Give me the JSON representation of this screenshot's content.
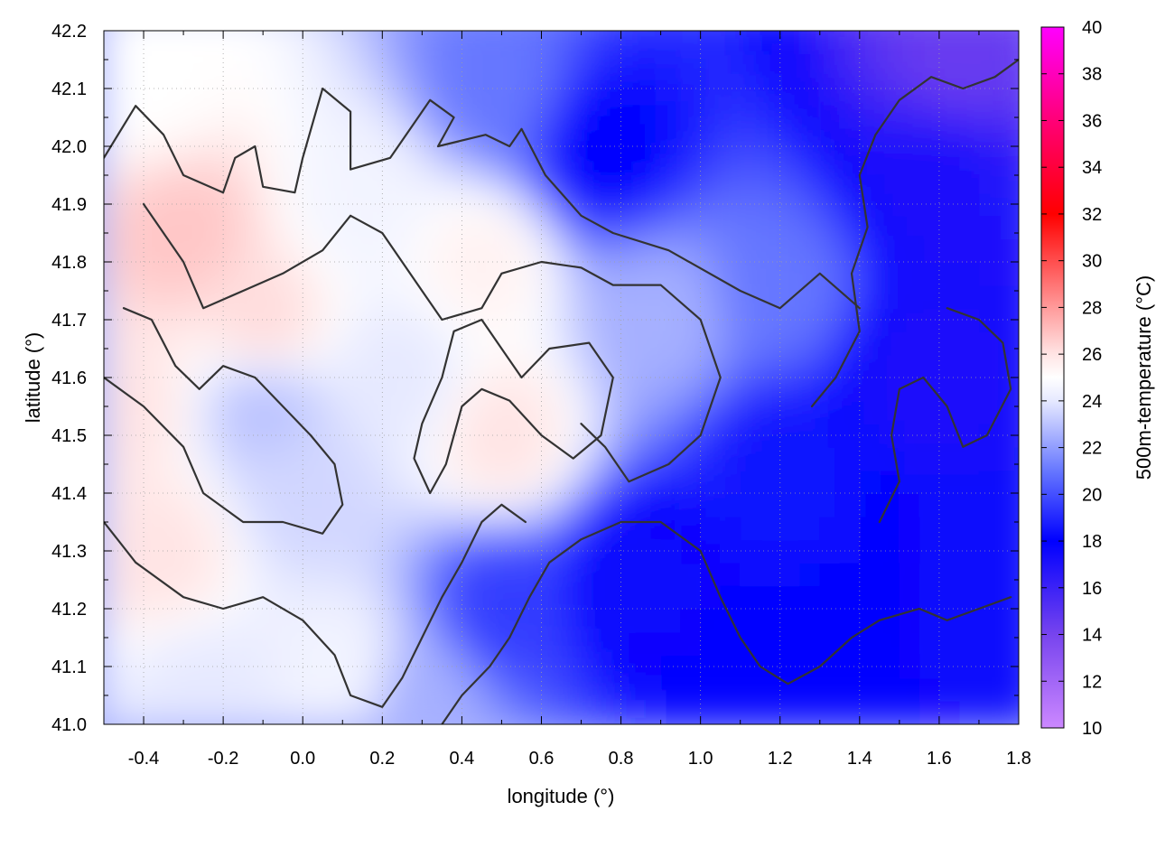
{
  "chart_data": {
    "type": "heatmap",
    "title": "",
    "xlabel": "longitude (°)",
    "ylabel": "latitude (°)",
    "colorbar_label": "500m-temperature (°C)",
    "xlim": [
      -0.5,
      1.8
    ],
    "ylim": [
      41.0,
      42.2
    ],
    "xticks": [
      -0.4,
      -0.2,
      0.0,
      0.2,
      0.4,
      0.6,
      0.8,
      1.0,
      1.2,
      1.4,
      1.6,
      1.8
    ],
    "xtick_labels": [
      "-0.4",
      "-0.2",
      "0.0",
      "0.2",
      "0.4",
      "0.6",
      "0.8",
      "1.0",
      "1.2",
      "1.4",
      "1.6",
      "1.8"
    ],
    "yticks": [
      41.0,
      41.1,
      41.2,
      41.3,
      41.4,
      41.5,
      41.6,
      41.7,
      41.8,
      41.9,
      42.0,
      42.1,
      42.2
    ],
    "ytick_labels": [
      "41.0",
      "41.1",
      "41.2",
      "41.3",
      "41.4",
      "41.5",
      "41.6",
      "41.7",
      "41.8",
      "41.9",
      "42.0",
      "42.1",
      "42.2"
    ],
    "grid": true,
    "colorbar": {
      "range": [
        10,
        40
      ],
      "ticks": [
        10,
        12,
        14,
        16,
        18,
        20,
        22,
        24,
        26,
        28,
        30,
        32,
        34,
        36,
        38,
        40
      ],
      "tick_labels": [
        "10",
        "12",
        "14",
        "16",
        "18",
        "20",
        "22",
        "24",
        "26",
        "28",
        "30",
        "32",
        "34",
        "36",
        "38",
        "40"
      ],
      "stops": [
        {
          "value": 10,
          "color": "#cc88ff"
        },
        {
          "value": 14,
          "color": "#7744ee"
        },
        {
          "value": 18,
          "color": "#0000ff"
        },
        {
          "value": 21,
          "color": "#6677ff"
        },
        {
          "value": 24,
          "color": "#e6e9ff"
        },
        {
          "value": 25,
          "color": "#ffffff"
        },
        {
          "value": 26,
          "color": "#ffe4e4"
        },
        {
          "value": 28,
          "color": "#ff9a9a"
        },
        {
          "value": 32,
          "color": "#ff0000"
        },
        {
          "value": 36,
          "color": "#ff0077"
        },
        {
          "value": 40,
          "color": "#ff00ff"
        }
      ]
    },
    "field_samples": [
      {
        "lon": -0.4,
        "lat": 42.1,
        "temp": 25.0
      },
      {
        "lon": -0.3,
        "lat": 41.85,
        "temp": 26.8
      },
      {
        "lon": -0.1,
        "lat": 41.7,
        "temp": 26.2
      },
      {
        "lon": -0.45,
        "lat": 41.55,
        "temp": 26.0
      },
      {
        "lon": -0.35,
        "lat": 41.3,
        "temp": 26.0
      },
      {
        "lon": -0.1,
        "lat": 41.55,
        "temp": 23.0
      },
      {
        "lon": 0.0,
        "lat": 41.4,
        "temp": 23.5
      },
      {
        "lon": 0.15,
        "lat": 41.9,
        "temp": 24.5
      },
      {
        "lon": 0.25,
        "lat": 41.6,
        "temp": 24.0
      },
      {
        "lon": 0.5,
        "lat": 41.5,
        "temp": 26.0
      },
      {
        "lon": 0.45,
        "lat": 41.8,
        "temp": 25.5
      },
      {
        "lon": 0.5,
        "lat": 42.1,
        "temp": 21.0
      },
      {
        "lon": 0.75,
        "lat": 42.0,
        "temp": 18.0
      },
      {
        "lon": 0.9,
        "lat": 41.7,
        "temp": 22.5
      },
      {
        "lon": 0.5,
        "lat": 41.2,
        "temp": 19.5
      },
      {
        "lon": 0.85,
        "lat": 41.25,
        "temp": 17.5
      },
      {
        "lon": 1.2,
        "lat": 41.45,
        "temp": 18.5
      },
      {
        "lon": 1.2,
        "lat": 41.75,
        "temp": 21.0
      },
      {
        "lon": 1.55,
        "lat": 41.6,
        "temp": 17.0
      },
      {
        "lon": 1.6,
        "lat": 41.95,
        "temp": 17.0
      },
      {
        "lon": 1.65,
        "lat": 42.15,
        "temp": 14.5
      },
      {
        "lon": 1.3,
        "lat": 41.1,
        "temp": 18.0
      },
      {
        "lon": 1.7,
        "lat": 41.2,
        "temp": 17.5
      },
      {
        "lon": 0.1,
        "lat": 41.1,
        "temp": 24.5
      },
      {
        "lon": 0.3,
        "lat": 41.05,
        "temp": 22.5
      },
      {
        "lon": -0.25,
        "lat": 41.05,
        "temp": 24.0
      }
    ],
    "contours": [
      {
        "level": "upper-left-warm",
        "points": [
          [
            -0.5,
            41.98
          ],
          [
            -0.42,
            42.07
          ],
          [
            -0.35,
            42.02
          ],
          [
            -0.3,
            41.95
          ],
          [
            -0.2,
            41.92
          ],
          [
            -0.17,
            41.98
          ],
          [
            -0.12,
            42.0
          ],
          [
            -0.1,
            41.93
          ],
          [
            -0.02,
            41.92
          ],
          [
            0.0,
            41.98
          ],
          [
            0.05,
            42.1
          ],
          [
            0.12,
            42.06
          ],
          [
            0.12,
            41.96
          ],
          [
            0.22,
            41.98
          ],
          [
            0.32,
            42.08
          ],
          [
            0.38,
            42.05
          ],
          [
            0.34,
            42.0
          ],
          [
            0.46,
            42.02
          ],
          [
            0.52,
            42.0
          ],
          [
            0.55,
            42.03
          ],
          [
            0.61,
            41.95
          ],
          [
            0.7,
            41.88
          ],
          [
            0.78,
            41.85
          ],
          [
            0.92,
            41.82
          ],
          [
            1.1,
            41.75
          ],
          [
            1.2,
            41.72
          ],
          [
            1.3,
            41.78
          ],
          [
            1.4,
            41.72
          ]
        ]
      },
      {
        "level": "upper-left-inner",
        "points": [
          [
            -0.4,
            41.9
          ],
          [
            -0.3,
            41.8
          ],
          [
            -0.25,
            41.72
          ],
          [
            -0.15,
            41.75
          ],
          [
            -0.05,
            41.78
          ],
          [
            0.05,
            41.82
          ],
          [
            0.12,
            41.88
          ],
          [
            0.2,
            41.85
          ],
          [
            0.25,
            41.8
          ],
          [
            0.3,
            41.75
          ],
          [
            0.35,
            41.7
          ],
          [
            0.45,
            41.72
          ],
          [
            0.5,
            41.78
          ],
          [
            0.6,
            41.8
          ],
          [
            0.7,
            41.79
          ],
          [
            0.78,
            41.76
          ],
          [
            0.9,
            41.76
          ],
          [
            1.0,
            41.7
          ],
          [
            1.05,
            41.6
          ],
          [
            1.0,
            41.5
          ],
          [
            0.92,
            41.45
          ],
          [
            0.82,
            41.42
          ],
          [
            0.76,
            41.48
          ],
          [
            0.7,
            41.52
          ]
        ]
      },
      {
        "level": "middle-band",
        "points": [
          [
            -0.5,
            41.6
          ],
          [
            -0.4,
            41.55
          ],
          [
            -0.3,
            41.48
          ],
          [
            -0.25,
            41.4
          ],
          [
            -0.15,
            41.35
          ],
          [
            -0.05,
            41.35
          ],
          [
            0.05,
            41.33
          ],
          [
            0.1,
            41.38
          ],
          [
            0.08,
            41.45
          ],
          [
            0.02,
            41.5
          ],
          [
            -0.05,
            41.55
          ],
          [
            -0.12,
            41.6
          ],
          [
            -0.2,
            41.62
          ],
          [
            -0.26,
            41.58
          ],
          [
            -0.32,
            41.62
          ],
          [
            -0.38,
            41.7
          ],
          [
            -0.45,
            41.72
          ]
        ]
      },
      {
        "level": "central-loop",
        "points": [
          [
            0.32,
            41.4
          ],
          [
            0.36,
            41.45
          ],
          [
            0.4,
            41.55
          ],
          [
            0.45,
            41.58
          ],
          [
            0.52,
            41.56
          ],
          [
            0.6,
            41.5
          ],
          [
            0.68,
            41.46
          ],
          [
            0.75,
            41.5
          ],
          [
            0.78,
            41.6
          ],
          [
            0.72,
            41.66
          ],
          [
            0.62,
            41.65
          ],
          [
            0.55,
            41.6
          ],
          [
            0.5,
            41.65
          ],
          [
            0.45,
            41.7
          ],
          [
            0.38,
            41.68
          ],
          [
            0.35,
            41.6
          ],
          [
            0.3,
            41.52
          ],
          [
            0.28,
            41.46
          ],
          [
            0.32,
            41.4
          ]
        ]
      },
      {
        "level": "south-warm",
        "points": [
          [
            -0.5,
            41.35
          ],
          [
            -0.42,
            41.28
          ],
          [
            -0.3,
            41.22
          ],
          [
            -0.2,
            41.2
          ],
          [
            -0.1,
            41.22
          ],
          [
            0.0,
            41.18
          ],
          [
            0.08,
            41.12
          ],
          [
            0.12,
            41.05
          ],
          [
            0.2,
            41.03
          ],
          [
            0.25,
            41.08
          ],
          [
            0.3,
            41.15
          ],
          [
            0.35,
            41.22
          ],
          [
            0.4,
            41.28
          ],
          [
            0.45,
            41.35
          ],
          [
            0.5,
            41.38
          ],
          [
            0.56,
            41.35
          ]
        ]
      },
      {
        "level": "south-cool",
        "points": [
          [
            0.35,
            41.0
          ],
          [
            0.4,
            41.05
          ],
          [
            0.47,
            41.1
          ],
          [
            0.52,
            41.15
          ],
          [
            0.57,
            41.22
          ],
          [
            0.62,
            41.28
          ],
          [
            0.7,
            41.32
          ],
          [
            0.8,
            41.35
          ],
          [
            0.9,
            41.35
          ],
          [
            1.0,
            41.3
          ],
          [
            1.05,
            41.22
          ],
          [
            1.1,
            41.15
          ],
          [
            1.15,
            41.1
          ],
          [
            1.22,
            41.07
          ],
          [
            1.3,
            41.1
          ],
          [
            1.38,
            41.15
          ],
          [
            1.45,
            41.18
          ],
          [
            1.55,
            41.2
          ],
          [
            1.62,
            41.18
          ],
          [
            1.7,
            41.2
          ],
          [
            1.78,
            41.22
          ]
        ]
      },
      {
        "level": "east-cold",
        "points": [
          [
            1.28,
            41.55
          ],
          [
            1.34,
            41.6
          ],
          [
            1.4,
            41.68
          ],
          [
            1.38,
            41.78
          ],
          [
            1.42,
            41.86
          ],
          [
            1.4,
            41.95
          ],
          [
            1.44,
            42.02
          ],
          [
            1.5,
            42.08
          ],
          [
            1.58,
            42.12
          ],
          [
            1.66,
            42.1
          ],
          [
            1.74,
            42.12
          ],
          [
            1.8,
            42.15
          ]
        ]
      },
      {
        "level": "east-inner",
        "points": [
          [
            1.45,
            41.35
          ],
          [
            1.5,
            41.42
          ],
          [
            1.48,
            41.5
          ],
          [
            1.5,
            41.58
          ],
          [
            1.56,
            41.6
          ],
          [
            1.62,
            41.55
          ],
          [
            1.66,
            41.48
          ],
          [
            1.72,
            41.5
          ],
          [
            1.78,
            41.58
          ],
          [
            1.76,
            41.66
          ],
          [
            1.7,
            41.7
          ],
          [
            1.62,
            41.72
          ]
        ]
      }
    ]
  }
}
